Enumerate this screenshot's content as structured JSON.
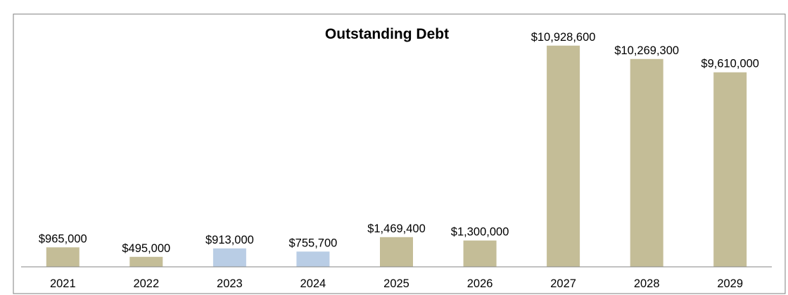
{
  "chart_data": {
    "type": "bar",
    "title": "Outstanding Debt",
    "xlabel": "",
    "ylabel": "",
    "categories": [
      "2021",
      "2022",
      "2023",
      "2024",
      "2025",
      "2026",
      "2027",
      "2028",
      "2029"
    ],
    "values": [
      965000,
      495000,
      913000,
      755700,
      1469400,
      1300000,
      10928600,
      10269300,
      9610000
    ],
    "data_labels": [
      "$965,000",
      "$495,000",
      "$913,000",
      "$755,700",
      "$1,469,400",
      "$1,300,000",
      "$10,928,600",
      "$10,269,300",
      "$9,610,000"
    ],
    "bar_colors": [
      "#c4bd97",
      "#c4bd97",
      "#b9cde5",
      "#b9cde5",
      "#c4bd97",
      "#c4bd97",
      "#c4bd97",
      "#c4bd97",
      "#c4bd97"
    ],
    "ylim": [
      0,
      12000000
    ],
    "grid": false,
    "legend": "none",
    "y_axis_visible": false
  },
  "colors": {
    "background": "#ffffff",
    "frame": "#7f7f7f",
    "axis": "#868686",
    "text": "#000000"
  }
}
